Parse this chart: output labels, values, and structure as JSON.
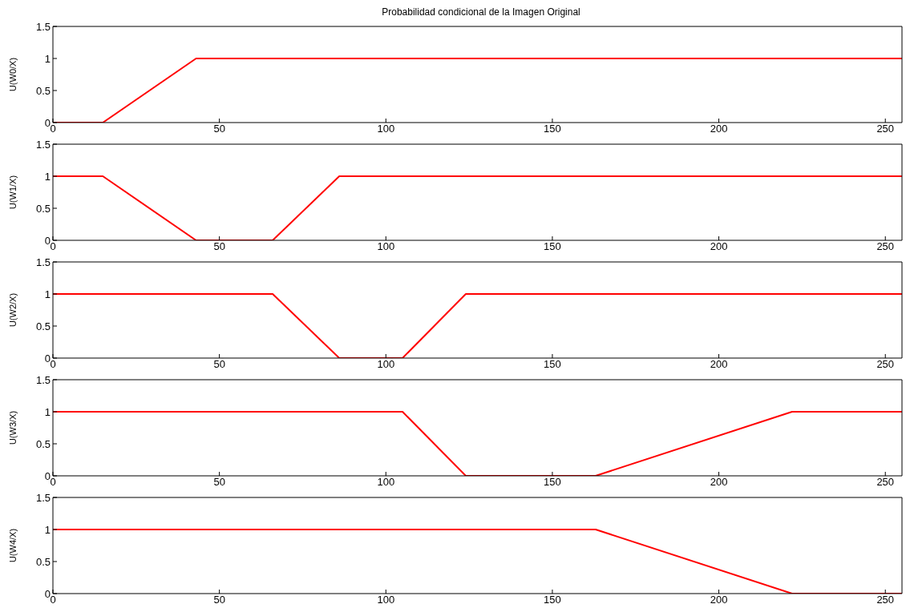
{
  "chart_data": [
    {
      "type": "line",
      "title": "Probabilidad condicional de la Imagen Original",
      "ylabel": "U(W0/X)",
      "xlim": [
        0,
        255
      ],
      "xticks": [
        0,
        50,
        100,
        150,
        200,
        250
      ],
      "ylim": [
        0,
        1.5
      ],
      "yticks": [
        0,
        0.5,
        1,
        1.5
      ],
      "grid": false,
      "legend": false,
      "marker": "none",
      "line_style": "solid",
      "series": [
        {
          "color": "#ff0000",
          "x": [
            0,
            15,
            43,
            255
          ],
          "values": [
            0,
            0,
            1,
            1
          ]
        }
      ]
    },
    {
      "type": "line",
      "ylabel": "U(W1/X)",
      "xlim": [
        0,
        255
      ],
      "xticks": [
        0,
        50,
        100,
        150,
        200,
        250
      ],
      "ylim": [
        0,
        1.5
      ],
      "yticks": [
        0,
        0.5,
        1,
        1.5
      ],
      "grid": false,
      "legend": false,
      "marker": "none",
      "line_style": "solid",
      "series": [
        {
          "color": "#ff0000",
          "x": [
            0,
            15,
            43,
            66,
            86,
            255
          ],
          "values": [
            1,
            1,
            0,
            0,
            1,
            1
          ]
        }
      ]
    },
    {
      "type": "line",
      "ylabel": "U(W2/X)",
      "xlim": [
        0,
        255
      ],
      "xticks": [
        0,
        50,
        100,
        150,
        200,
        250
      ],
      "ylim": [
        0,
        1.5
      ],
      "yticks": [
        0,
        0.5,
        1,
        1.5
      ],
      "grid": false,
      "legend": false,
      "marker": "none",
      "line_style": "solid",
      "series": [
        {
          "color": "#ff0000",
          "x": [
            0,
            66,
            86,
            105,
            124,
            255
          ],
          "values": [
            1,
            1,
            0,
            0,
            1,
            1
          ]
        }
      ]
    },
    {
      "type": "line",
      "ylabel": "U(W3/X)",
      "xlim": [
        0,
        255
      ],
      "xticks": [
        0,
        50,
        100,
        150,
        200,
        250
      ],
      "ylim": [
        0,
        1.5
      ],
      "yticks": [
        0,
        0.5,
        1,
        1.5
      ],
      "grid": false,
      "legend": false,
      "marker": "none",
      "line_style": "solid",
      "series": [
        {
          "color": "#ff0000",
          "x": [
            0,
            105,
            124,
            163,
            222,
            255
          ],
          "values": [
            1,
            1,
            0,
            0,
            1,
            1
          ]
        }
      ]
    },
    {
      "type": "line",
      "ylabel": "U(W4/X)",
      "xlim": [
        0,
        255
      ],
      "xticks": [
        0,
        50,
        100,
        150,
        200,
        250
      ],
      "ylim": [
        0,
        1.5
      ],
      "yticks": [
        0,
        0.5,
        1,
        1.5
      ],
      "grid": false,
      "legend": false,
      "marker": "none",
      "line_style": "solid",
      "series": [
        {
          "color": "#ff0000",
          "x": [
            0,
            163,
            222,
            255
          ],
          "values": [
            1,
            1,
            0,
            0
          ]
        }
      ]
    }
  ]
}
